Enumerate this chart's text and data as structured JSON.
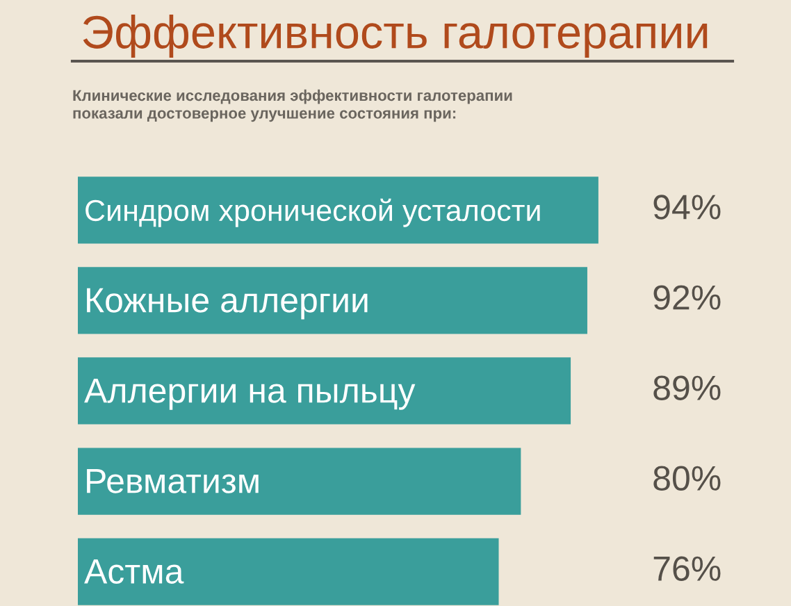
{
  "chart_data": {
    "type": "bar",
    "orientation": "horizontal",
    "title": "Эффективность галотерапии",
    "subtitle": "Клинические исследования эффективности галотерапии\nпоказали достоверное улучшение состояния при:",
    "categories": [
      "Синдром хронической усталости",
      "Кожные аллергии",
      "Аллергии на пыльцу",
      "Ревматизм",
      "Астма"
    ],
    "values": [
      94,
      92,
      89,
      80,
      76
    ],
    "value_labels": [
      "94%",
      "92%",
      "89%",
      "80%",
      "76%"
    ],
    "color": "#3a9e9b"
  }
}
